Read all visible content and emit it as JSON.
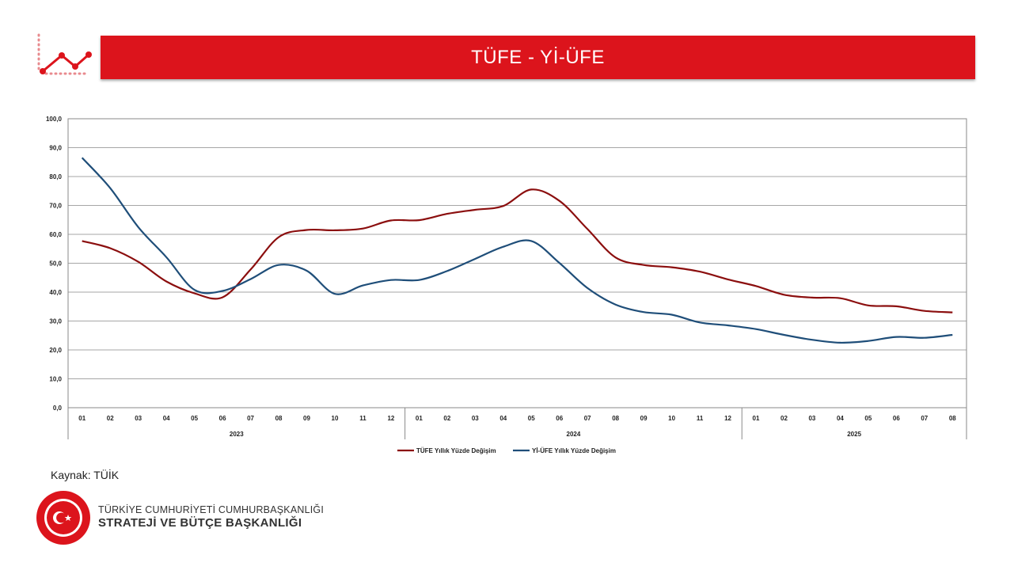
{
  "header": {
    "title": "TÜFE - Yİ-ÜFE"
  },
  "source_label": "Kaynak: TÜİK",
  "organization": {
    "line1": "TÜRKİYE CUMHURİYETİ CUMHURBAŞKANLIĞI",
    "line2": "STRATEJİ VE BÜTÇE BAŞKANLIĞI",
    "seal_text": "T.C. CUMHURBAŞKANLIĞI STRATEJİ VE BÜTÇE BAŞKANLIĞI"
  },
  "colors": {
    "accent": "#dc141c",
    "tufe": "#8b0e0e",
    "yiufe": "#1f4e79",
    "grid": "#a6a6a6"
  },
  "chart_data": {
    "type": "line",
    "title": "",
    "xlabel": "",
    "ylabel": "",
    "ylim": [
      0,
      100
    ],
    "y_ticks": [
      "0,0",
      "10,0",
      "20,0",
      "30,0",
      "40,0",
      "50,0",
      "60,0",
      "70,0",
      "80,0",
      "90,0",
      "100,0"
    ],
    "categories": [
      "01",
      "02",
      "03",
      "04",
      "05",
      "06",
      "07",
      "08",
      "09",
      "10",
      "11",
      "12",
      "01",
      "02",
      "03",
      "04",
      "05",
      "06",
      "07",
      "08",
      "09",
      "10",
      "11",
      "12",
      "01",
      "02",
      "03",
      "04",
      "05",
      "06",
      "07",
      "08"
    ],
    "groups": [
      {
        "label": "2023",
        "count": 12
      },
      {
        "label": "2024",
        "count": 12
      },
      {
        "label": "2025",
        "count": 8
      }
    ],
    "legend_position": "bottom",
    "series": [
      {
        "name": "TÜFE Yıllık Yüzde Değişim",
        "values": [
          57.7,
          55.2,
          50.5,
          43.7,
          39.6,
          38.2,
          47.8,
          59.0,
          61.5,
          61.4,
          62.0,
          64.8,
          64.9,
          67.1,
          68.5,
          69.8,
          75.5,
          71.6,
          61.8,
          52.0,
          49.4,
          48.6,
          47.1,
          44.4,
          42.1,
          39.1,
          38.1,
          37.9,
          35.4,
          35.1,
          33.5,
          33.0
        ]
      },
      {
        "name": "Yİ-ÜFE Yıllık Yüzde Değişim",
        "values": [
          86.5,
          76.0,
          62.5,
          52.1,
          40.8,
          40.4,
          44.5,
          49.4,
          47.4,
          39.4,
          42.3,
          44.2,
          44.2,
          47.3,
          51.5,
          55.7,
          57.7,
          50.1,
          41.4,
          35.7,
          33.1,
          32.2,
          29.5,
          28.5,
          27.2,
          25.2,
          23.5,
          22.5,
          23.1,
          24.5,
          24.2,
          25.2
        ]
      }
    ]
  }
}
